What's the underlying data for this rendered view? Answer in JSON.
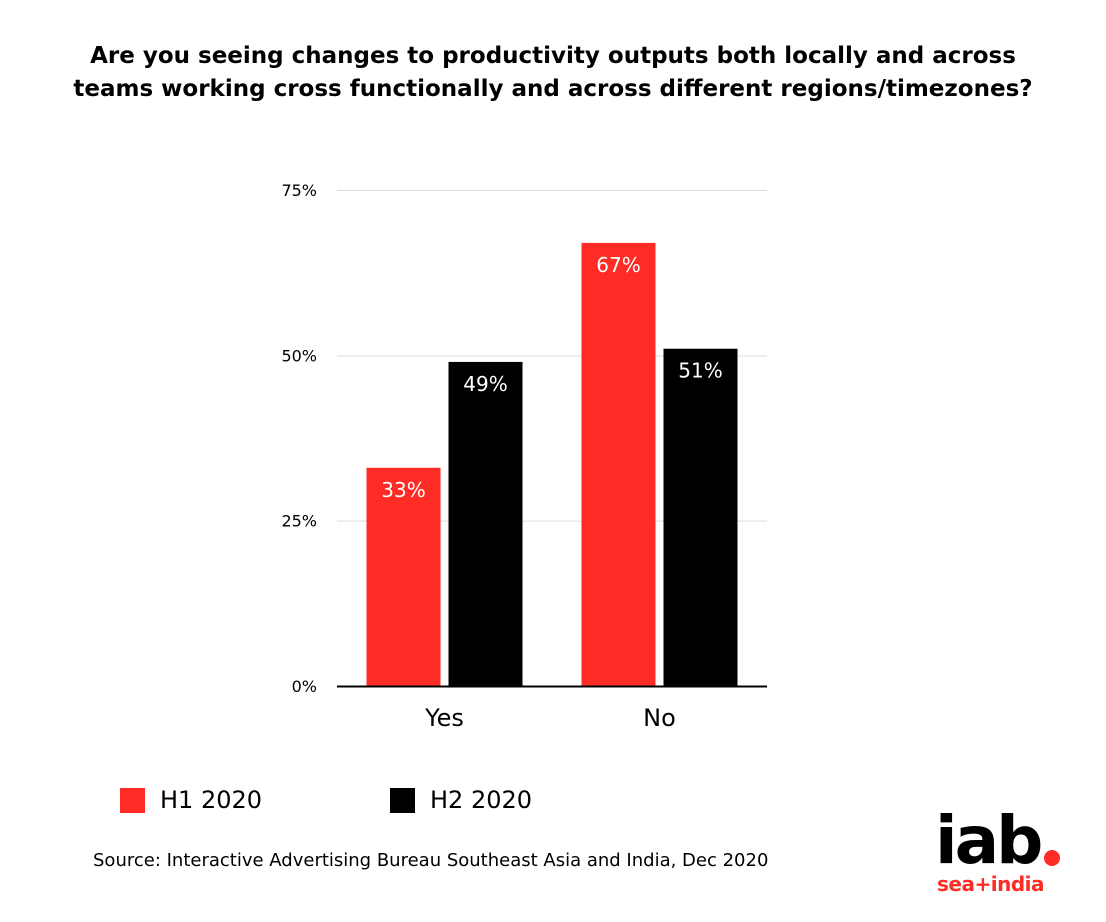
{
  "chart_data": {
    "type": "bar",
    "title_lines": [
      "Are you seeing changes to productivity outputs both locally and across",
      "teams working cross functionally and across different regions/timezones?"
    ],
    "categories": [
      "Yes",
      "No"
    ],
    "series": [
      {
        "name": "H1 2020",
        "color": "#ff2b25",
        "values": [
          33,
          67
        ],
        "labels": [
          "33%",
          "67%"
        ]
      },
      {
        "name": "H2 2020",
        "color": "#000000",
        "values": [
          49,
          51
        ],
        "labels": [
          "49%",
          "51%"
        ]
      }
    ],
    "ylim": [
      0,
      75
    ],
    "yticks": [
      0,
      25,
      50,
      75
    ],
    "ytick_labels": [
      "0%",
      "25%",
      "50%",
      "75%"
    ],
    "grid": true,
    "legend_placement": "bottom-left"
  },
  "legend": [
    {
      "label": "H1 2020",
      "color": "#ff2b25"
    },
    {
      "label": "H2 2020",
      "color": "#000000"
    }
  ],
  "source": "Source: Interactive Advertising Bureau Southeast Asia and India, Dec 2020",
  "logo": {
    "main": "iab",
    "sub": "sea+india"
  }
}
